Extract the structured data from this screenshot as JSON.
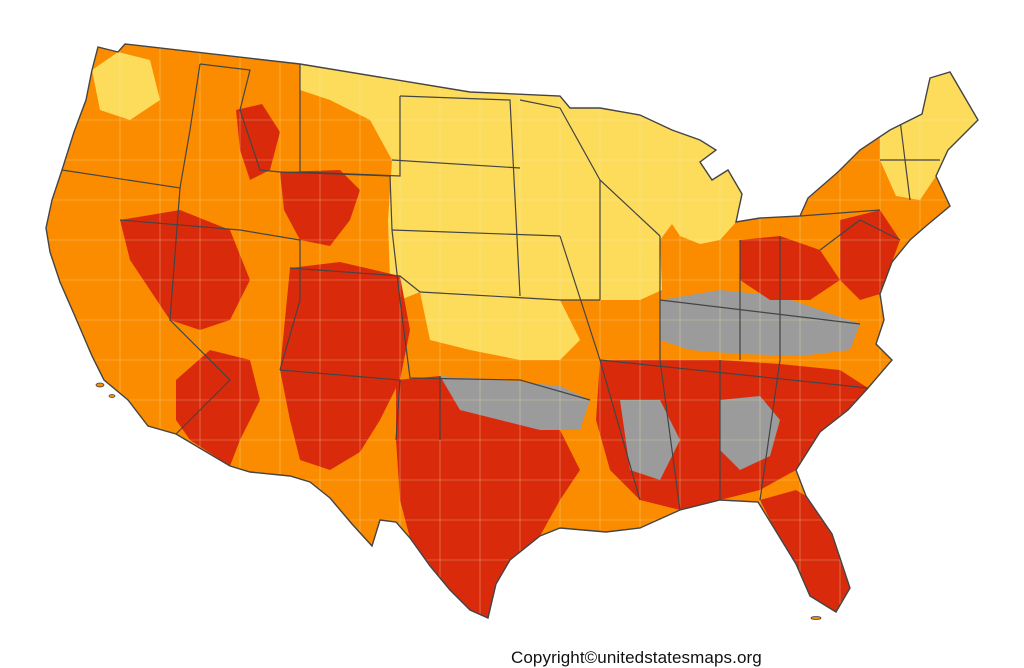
{
  "map": {
    "subject": "contiguous-us-county-choropleth",
    "legend_visible": false,
    "copyright": "Copyright©unitedstatesmaps.org",
    "colors": {
      "dark_red": "#d92b0c",
      "orange": "#fb8c00",
      "yellow": "#fddc5c",
      "gray": "#9b9b9b",
      "state_border": "#444444",
      "county_border": "#f4e9b8",
      "background": "#ffffff"
    }
  }
}
